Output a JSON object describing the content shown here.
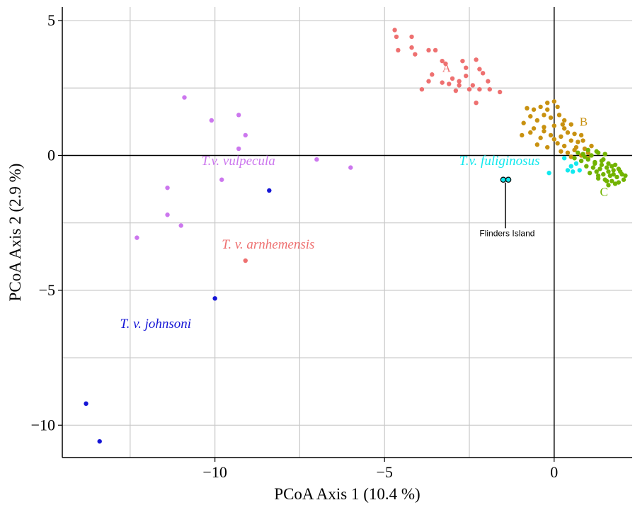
{
  "chart_data": {
    "type": "scatter",
    "title": "",
    "xlabel": "PCoA Axis 1 (10.4 %)",
    "ylabel": "PCoA Axis 2 (2.9 %)",
    "xlim": [
      -14.5,
      2.3
    ],
    "ylim": [
      -11.2,
      5.5
    ],
    "grid": true,
    "legend": "none",
    "x_ticks": [
      {
        "value": -10,
        "label": "−10"
      },
      {
        "value": -5,
        "label": "−5"
      },
      {
        "value": 0,
        "label": "0"
      }
    ],
    "y_ticks": [
      {
        "value": 5,
        "label": "5"
      },
      {
        "value": 0,
        "label": "0"
      },
      {
        "value": -5,
        "label": "−5"
      },
      {
        "value": -10,
        "label": "−10"
      }
    ],
    "gridlines_x": [
      -12.5,
      -10,
      -7.5,
      -5,
      -2.5,
      0
    ],
    "gridlines_y": [
      5,
      2.5,
      0,
      -2.5,
      -5,
      -7.5,
      -10
    ],
    "series": [
      {
        "name": "T.v. vulpecula",
        "color": "#cc77ee",
        "points": [
          [
            -10.9,
            2.15
          ],
          [
            -10.1,
            1.3
          ],
          [
            -9.3,
            1.5
          ],
          [
            -9.1,
            0.75
          ],
          [
            -9.3,
            0.25
          ],
          [
            -9.8,
            -0.9
          ],
          [
            -7.0,
            -0.15
          ],
          [
            -6.0,
            -0.45
          ],
          [
            -11.4,
            -1.2
          ],
          [
            -11.4,
            -2.2
          ],
          [
            -11.0,
            -2.6
          ],
          [
            -12.3,
            -3.05
          ]
        ]
      },
      {
        "name": "T. v. johnsoni",
        "color": "#1515d6",
        "points": [
          [
            -8.4,
            -1.3
          ],
          [
            -10.0,
            -5.3
          ],
          [
            -13.8,
            -9.2
          ],
          [
            -13.4,
            -10.6
          ]
        ]
      },
      {
        "name": "T. v. arnhemensis",
        "color": "#ee7070",
        "points": [
          [
            -9.1,
            -3.9
          ]
        ]
      },
      {
        "name": "A",
        "color": "#ee7070",
        "points": [
          [
            -4.7,
            4.65
          ],
          [
            -4.65,
            4.4
          ],
          [
            -4.2,
            4.4
          ],
          [
            -4.6,
            3.9
          ],
          [
            -4.2,
            4.0
          ],
          [
            -4.1,
            3.75
          ],
          [
            -3.7,
            3.9
          ],
          [
            -3.5,
            3.9
          ],
          [
            -3.3,
            3.5
          ],
          [
            -3.2,
            3.4
          ],
          [
            -2.7,
            3.5
          ],
          [
            -2.6,
            3.25
          ],
          [
            -2.3,
            3.55
          ],
          [
            -2.2,
            3.2
          ],
          [
            -2.1,
            3.05
          ],
          [
            -2.6,
            2.95
          ],
          [
            -3.0,
            2.85
          ],
          [
            -3.6,
            3.0
          ],
          [
            -3.3,
            2.7
          ],
          [
            -3.1,
            2.65
          ],
          [
            -2.8,
            2.6
          ],
          [
            -2.4,
            2.6
          ],
          [
            -1.95,
            2.75
          ],
          [
            -1.9,
            2.45
          ],
          [
            -2.2,
            2.45
          ],
          [
            -2.5,
            2.45
          ],
          [
            -2.8,
            2.75
          ],
          [
            -3.9,
            2.45
          ],
          [
            -2.9,
            2.4
          ],
          [
            -1.6,
            2.35
          ],
          [
            -2.3,
            1.95
          ],
          [
            -3.7,
            2.75
          ]
        ]
      },
      {
        "name": "B",
        "color": "#c89110",
        "points": [
          [
            -0.8,
            1.75
          ],
          [
            -0.6,
            1.7
          ],
          [
            -0.4,
            1.8
          ],
          [
            -0.2,
            1.95
          ],
          [
            0.0,
            2.0
          ],
          [
            0.1,
            1.8
          ],
          [
            -0.7,
            1.45
          ],
          [
            -0.5,
            1.3
          ],
          [
            -0.3,
            1.5
          ],
          [
            -0.1,
            1.4
          ],
          [
            0.15,
            1.5
          ],
          [
            0.3,
            1.3
          ],
          [
            -0.9,
            1.2
          ],
          [
            -0.6,
            1.0
          ],
          [
            -0.3,
            1.05
          ],
          [
            0.0,
            1.1
          ],
          [
            0.3,
            1.0
          ],
          [
            0.5,
            1.15
          ],
          [
            -0.95,
            0.75
          ],
          [
            -0.7,
            0.85
          ],
          [
            -0.4,
            0.65
          ],
          [
            -0.1,
            0.75
          ],
          [
            0.2,
            0.7
          ],
          [
            0.4,
            0.85
          ],
          [
            0.6,
            0.8
          ],
          [
            0.8,
            0.75
          ],
          [
            -0.5,
            0.4
          ],
          [
            -0.2,
            0.3
          ],
          [
            0.1,
            0.45
          ],
          [
            0.3,
            0.35
          ],
          [
            0.5,
            0.55
          ],
          [
            0.7,
            0.5
          ],
          [
            0.85,
            0.55
          ],
          [
            0.4,
            0.1
          ],
          [
            0.6,
            0.2
          ],
          [
            0.9,
            0.25
          ],
          [
            1.1,
            0.35
          ],
          [
            0.2,
            0.15
          ],
          [
            0.5,
            -0.05
          ],
          [
            0.8,
            0.0
          ],
          [
            1.0,
            0.1
          ],
          [
            -0.3,
            0.9
          ],
          [
            0.0,
            0.6
          ],
          [
            0.25,
            1.15
          ],
          [
            -0.2,
            1.7
          ],
          [
            0.65,
            0.3
          ],
          [
            1.0,
            -0.1
          ]
        ]
      },
      {
        "name": "C",
        "color": "#72b300",
        "points": [
          [
            0.7,
            0.1
          ],
          [
            0.9,
            -0.05
          ],
          [
            1.1,
            0.0
          ],
          [
            1.3,
            0.1
          ],
          [
            1.5,
            0.05
          ],
          [
            0.8,
            -0.2
          ],
          [
            1.0,
            -0.15
          ],
          [
            1.2,
            -0.25
          ],
          [
            1.4,
            -0.2
          ],
          [
            1.6,
            -0.3
          ],
          [
            1.8,
            -0.35
          ],
          [
            0.95,
            -0.4
          ],
          [
            1.15,
            -0.45
          ],
          [
            1.35,
            -0.5
          ],
          [
            1.55,
            -0.45
          ],
          [
            1.75,
            -0.55
          ],
          [
            1.95,
            -0.6
          ],
          [
            1.05,
            -0.65
          ],
          [
            1.25,
            -0.6
          ],
          [
            1.45,
            -0.7
          ],
          [
            1.65,
            -0.75
          ],
          [
            1.85,
            -0.8
          ],
          [
            2.0,
            -0.7
          ],
          [
            1.3,
            -0.85
          ],
          [
            1.5,
            -0.9
          ],
          [
            1.7,
            -0.95
          ],
          [
            1.9,
            -1.0
          ],
          [
            2.05,
            -0.9
          ],
          [
            1.6,
            -1.1
          ],
          [
            1.8,
            -1.05
          ],
          [
            1.2,
            -0.3
          ],
          [
            1.4,
            -0.35
          ],
          [
            1.6,
            -0.6
          ],
          [
            1.75,
            -0.7
          ],
          [
            1.0,
            0.2
          ],
          [
            1.25,
            0.15
          ],
          [
            0.6,
            -0.1
          ],
          [
            1.45,
            -0.15
          ],
          [
            2.1,
            -0.75
          ],
          [
            1.55,
            -0.95
          ],
          [
            0.85,
            0.05
          ],
          [
            1.9,
            -0.5
          ],
          [
            1.7,
            -0.4
          ],
          [
            1.3,
            -0.75
          ]
        ]
      },
      {
        "name": "T.v. fuliginosus",
        "color": "#11e8ee",
        "points": [
          [
            0.3,
            -0.1
          ],
          [
            0.5,
            -0.4
          ],
          [
            0.65,
            -0.3
          ],
          [
            0.75,
            -0.55
          ],
          [
            0.4,
            -0.55
          ],
          [
            0.55,
            -0.6
          ],
          [
            -0.15,
            -0.65
          ]
        ]
      },
      {
        "name": "Flinders Island",
        "color": "#11e8ee",
        "points": [
          [
            -1.5,
            -0.9
          ],
          [
            -1.35,
            -0.9
          ]
        ]
      }
    ],
    "annotations": [
      {
        "text": "T.v. vulpecula",
        "x": -10.4,
        "y": -0.35,
        "color": "#cc77ee",
        "style": "italic"
      },
      {
        "text": "T. v. johnsoni",
        "x": -12.8,
        "y": -6.4,
        "color": "#1515d6",
        "style": "italic"
      },
      {
        "text": "T. v. arnhemensis",
        "x": -9.8,
        "y": -3.45,
        "color": "#ee7070",
        "style": "italic"
      },
      {
        "text": "T.v. fuliginosus",
        "x": -2.8,
        "y": -0.35,
        "color": "#11e8ee",
        "style": "italic"
      },
      {
        "text": "A",
        "x": -3.3,
        "y": 3.1,
        "color": "#ee7070",
        "style": "normal"
      },
      {
        "text": "B",
        "x": 0.75,
        "y": 1.1,
        "color": "#c89110",
        "style": "normal"
      },
      {
        "text": "C",
        "x": 1.35,
        "y": -1.5,
        "color": "#72b300",
        "style": "normal"
      },
      {
        "text": "Flinders Island",
        "x": -2.2,
        "y": -3.0,
        "color": "#000000",
        "style": "normal"
      }
    ]
  }
}
